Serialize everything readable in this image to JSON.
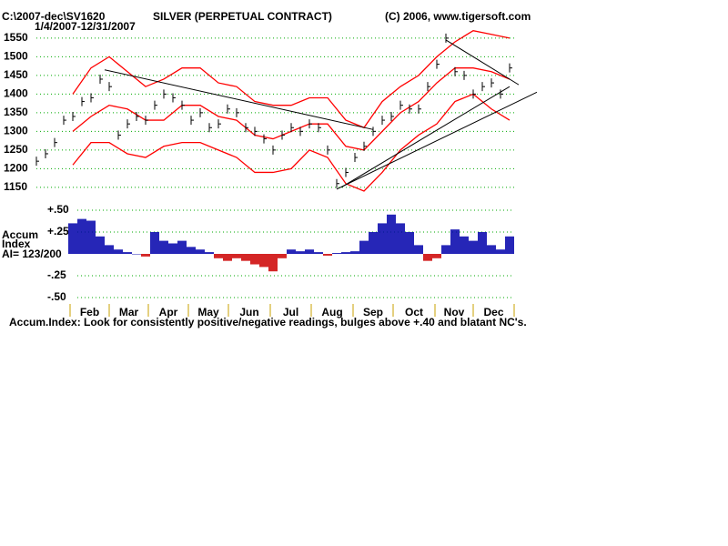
{
  "chart_data": {
    "type": "price-bars",
    "file_label": "C:\\2007-dec\\SV1620",
    "date_range": "1/4/2007-12/31/2007",
    "title": "SILVER (PERPETUAL CONTRACT)",
    "copyright": "(C) 2006, www.tigersoft.com",
    "ylim": [
      1135,
      1579
    ],
    "yticks": [
      1150,
      1200,
      1250,
      1300,
      1350,
      1400,
      1450,
      1500,
      1550
    ],
    "grid": true,
    "price": {
      "color": "#000000",
      "values": [
        1220,
        1240,
        1270,
        1330,
        1340,
        1380,
        1390,
        1440,
        1420,
        1290,
        1320,
        1340,
        1330,
        1370,
        1400,
        1390,
        1370,
        1330,
        1350,
        1310,
        1320,
        1360,
        1350,
        1310,
        1300,
        1280,
        1250,
        1290,
        1310,
        1300,
        1320,
        1310,
        1250,
        1160,
        1190,
        1230,
        1260,
        1300,
        1330,
        1340,
        1370,
        1360,
        1360,
        1420,
        1480,
        1550,
        1460,
        1450,
        1400,
        1420,
        1430,
        1400,
        1470
      ]
    },
    "bands": {
      "color": "#ff0000",
      "series": [
        {
          "values": [
            null,
            null,
            1400,
            1470,
            1500,
            1460,
            1420,
            1440,
            1470,
            1470,
            1430,
            1420,
            1380,
            1370,
            1370,
            1390,
            1390,
            1330,
            1310,
            1380,
            1420,
            1450,
            1500,
            1540,
            1570,
            1560,
            1550
          ]
        },
        {
          "values": [
            null,
            null,
            1300,
            1340,
            1370,
            1360,
            1330,
            1330,
            1370,
            1370,
            1340,
            1330,
            1290,
            1280,
            1300,
            1320,
            1320,
            1260,
            1250,
            1300,
            1350,
            1380,
            1430,
            1470,
            1470,
            1460,
            1440
          ]
        },
        {
          "values": [
            null,
            null,
            1210,
            1270,
            1270,
            1240,
            1230,
            1260,
            1270,
            1270,
            1250,
            1230,
            1190,
            1190,
            1200,
            1250,
            1230,
            1160,
            1140,
            1190,
            1250,
            1290,
            1320,
            1380,
            1400,
            1360,
            1330
          ]
        }
      ]
    },
    "trendlines": [
      {
        "x": [
          7.5,
          37
        ],
        "y": [
          1465,
          1305
        ]
      },
      {
        "x": [
          33,
          55
        ],
        "y": [
          1145,
          1405
        ]
      },
      {
        "x": [
          33.5,
          52
        ],
        "y": [
          1150,
          1420
        ]
      },
      {
        "x": [
          45,
          53
        ],
        "y": [
          1545,
          1425
        ]
      }
    ],
    "accum": {
      "label_1": "Accum",
      "label_2": "Index",
      "ai": "AI= 123/200",
      "ylim": [
        -0.5,
        0.5
      ],
      "yticks": [
        {
          "value": 0.5,
          "label": "+.50"
        },
        {
          "value": 0.25,
          "label": "+.25"
        },
        {
          "value": -0.25,
          "label": "-.25"
        },
        {
          "value": -0.5,
          "label": "-.50"
        }
      ],
      "positive_color": "#0000aa",
      "negative_color": "#cc0000",
      "values": [
        null,
        null,
        null,
        null,
        0.35,
        0.4,
        0.38,
        0.2,
        0.1,
        0.05,
        0.02,
        0,
        -0.03,
        0.25,
        0.15,
        0.12,
        0.15,
        0.08,
        0.05,
        0.02,
        -0.05,
        -0.08,
        -0.05,
        -0.08,
        -0.12,
        -0.15,
        -0.2,
        -0.05,
        0.05,
        0.03,
        0.05,
        0.02,
        -0.02,
        0.01,
        0.02,
        0.03,
        0.15,
        0.25,
        0.35,
        0.45,
        0.35,
        0.25,
        0.1,
        -0.08,
        -0.05,
        0.1,
        0.28,
        0.2,
        0.15,
        0.25,
        0.1,
        0.05,
        0.2
      ]
    },
    "months": [
      "Feb",
      "Mar",
      "Apr",
      "May",
      "Jun",
      "Jul",
      "Aug",
      "Sep",
      "Oct",
      "Nov",
      "Dec"
    ],
    "footer": "Accum.Index: Look for consistently positive/negative readings, bulges above +.40 and blatant NC's."
  }
}
